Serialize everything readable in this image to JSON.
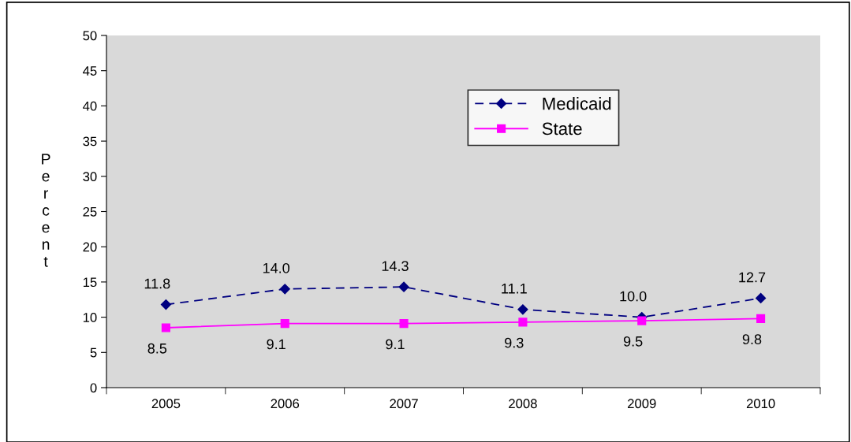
{
  "chart_data": {
    "type": "line",
    "ylabel": "Percent",
    "categories": [
      "2005",
      "2006",
      "2007",
      "2008",
      "2009",
      "2010"
    ],
    "series": [
      {
        "name": "Medicaid",
        "color": "#000080",
        "values": [
          11.8,
          14.0,
          14.3,
          11.1,
          10.0,
          12.7
        ],
        "value_labels": [
          "11.8",
          "14.0",
          "14.3",
          "11.1",
          "10.0",
          "12.7"
        ],
        "marker": "diamond",
        "line_style": "dashed"
      },
      {
        "name": "State",
        "color": "#ff00ff",
        "values": [
          8.5,
          9.1,
          9.1,
          9.3,
          9.5,
          9.8
        ],
        "value_labels": [
          "8.5",
          "9.1",
          "9.1",
          "9.3",
          "9.5",
          "9.8"
        ],
        "marker": "square",
        "line_style": "solid"
      }
    ],
    "ylim": [
      0,
      50
    ],
    "yticks": [
      0,
      5,
      10,
      15,
      20,
      25,
      30,
      35,
      40,
      45,
      50
    ],
    "grid": false,
    "legend": "top right"
  }
}
